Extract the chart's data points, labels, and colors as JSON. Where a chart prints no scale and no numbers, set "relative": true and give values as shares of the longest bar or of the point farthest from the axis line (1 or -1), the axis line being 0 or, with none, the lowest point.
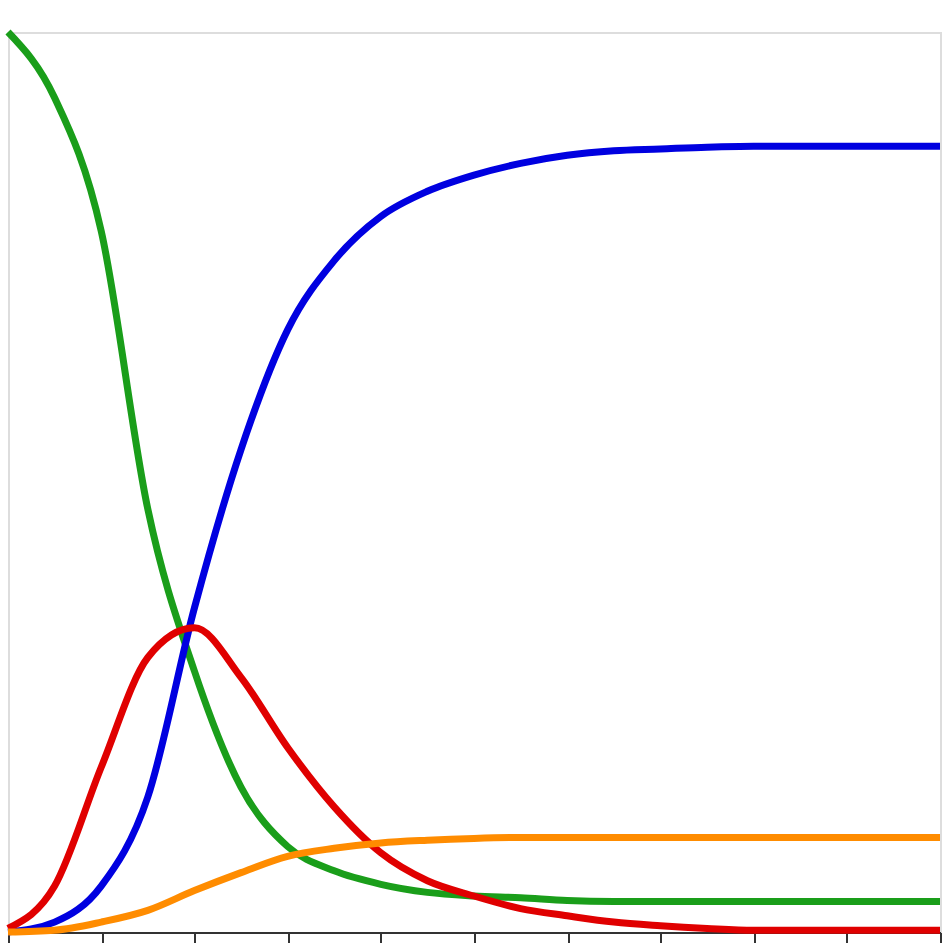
{
  "chart_data": {
    "type": "line",
    "relative": true,
    "tick_labels": false,
    "grid": false,
    "line_style": "solid",
    "marker": "none",
    "categories": [
      null,
      null,
      null,
      null,
      null,
      null,
      null,
      null,
      null,
      null,
      null,
      null,
      null,
      null,
      null,
      null,
      null,
      null,
      null,
      null,
      null
    ],
    "series": [
      {
        "color": "#1a9e1a",
        "values": [
          1.0,
          0.927,
          0.779,
          0.47,
          0.29,
          0.161,
          0.095,
          0.068,
          0.053,
          0.044,
          0.04,
          0.038,
          0.035,
          0.034,
          0.034,
          0.034,
          0.034,
          0.034,
          0.034,
          0.034,
          0.034
        ]
      },
      {
        "color": "#0000e0",
        "values": [
          0.0,
          0.011,
          0.051,
          0.15,
          0.36,
          0.536,
          0.669,
          0.746,
          0.795,
          0.823,
          0.841,
          0.854,
          0.863,
          0.868,
          0.87,
          0.872,
          0.873,
          0.873,
          0.873,
          0.873,
          0.873
        ]
      },
      {
        "color": "#e00000",
        "values": [
          0.004,
          0.051,
          0.183,
          0.305,
          0.338,
          0.283,
          0.205,
          0.139,
          0.088,
          0.057,
          0.04,
          0.026,
          0.018,
          0.011,
          0.007,
          0.004,
          0.002,
          0.002,
          0.002,
          0.002,
          0.002
        ]
      },
      {
        "color": "#ff8c00",
        "values": [
          0.0,
          0.002,
          0.011,
          0.024,
          0.046,
          0.066,
          0.084,
          0.093,
          0.099,
          0.102,
          0.104,
          0.105,
          0.105,
          0.105,
          0.105,
          0.105,
          0.105,
          0.105,
          0.105,
          0.105,
          0.105
        ]
      }
    ]
  }
}
